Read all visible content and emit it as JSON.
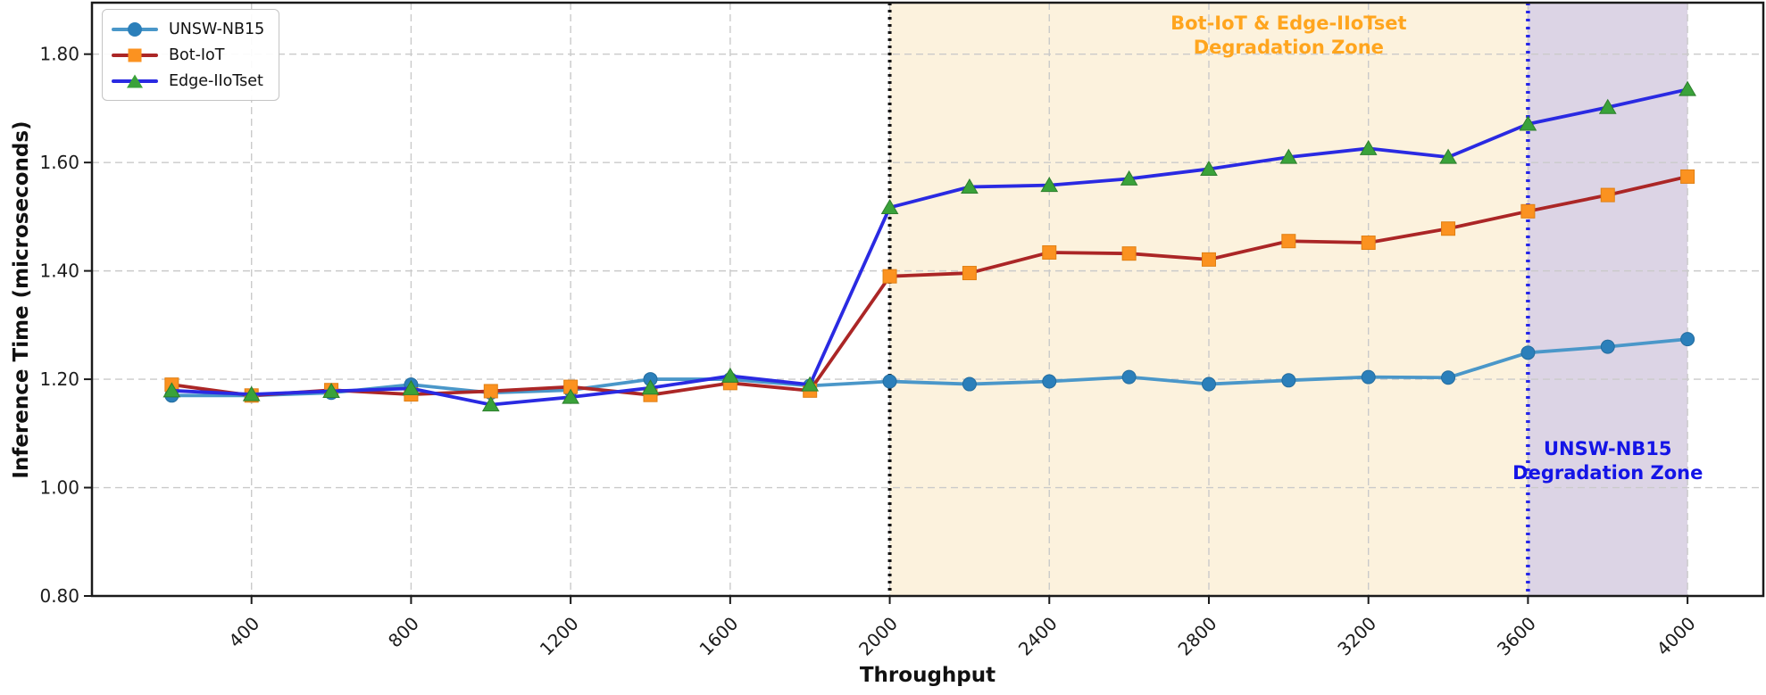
{
  "chart_data": {
    "type": "line",
    "xlabel": "Throughput",
    "ylabel": "Inference Time (microseconds)",
    "x": [
      200,
      400,
      600,
      800,
      1000,
      1200,
      1400,
      1600,
      1800,
      2000,
      2200,
      2400,
      2600,
      2800,
      3000,
      3200,
      3400,
      3600,
      3800,
      4000
    ],
    "xtick_labels": [
      "400",
      "800",
      "1200",
      "1600",
      "2000",
      "2400",
      "2800",
      "3200",
      "3600",
      "4000"
    ],
    "xticks": [
      400,
      800,
      1200,
      1600,
      2000,
      2400,
      2800,
      3200,
      3600,
      4000
    ],
    "ytick_labels": [
      "0.80",
      "1.00",
      "1.20",
      "1.40",
      "1.60",
      "1.80"
    ],
    "yticks": [
      0.8,
      1.0,
      1.2,
      1.4,
      1.6,
      1.8
    ],
    "xlim": [
      0,
      4190
    ],
    "ylim": [
      0.8,
      1.895
    ],
    "grid": true,
    "grid_color": "#cacaca",
    "series": [
      {
        "name": "UNSW-NB15",
        "marker": "circle",
        "line_color": "#4a97c9",
        "marker_color": "#2b7fba",
        "marker_edge": "#246d9f",
        "values": [
          1.17,
          1.17,
          1.175,
          1.19,
          1.175,
          1.18,
          1.2,
          1.2,
          1.188,
          1.196,
          1.191,
          1.196,
          1.204,
          1.191,
          1.198,
          1.204,
          1.203,
          1.249,
          1.26,
          1.274
        ]
      },
      {
        "name": "Bot-IoT",
        "marker": "square",
        "line_color": "#ab2626",
        "marker_color": "#fb9220",
        "marker_edge": "#e07f12",
        "values": [
          1.19,
          1.17,
          1.18,
          1.172,
          1.178,
          1.186,
          1.171,
          1.193,
          1.179,
          1.39,
          1.396,
          1.434,
          1.432,
          1.421,
          1.455,
          1.452,
          1.478,
          1.51,
          1.54,
          1.574
        ]
      },
      {
        "name": "Edge-IIoTset",
        "marker": "triangle",
        "line_color": "#2a2ae2",
        "marker_color": "#3aa23a",
        "marker_edge": "#2d7f2d",
        "values": [
          1.179,
          1.172,
          1.178,
          1.183,
          1.153,
          1.167,
          1.184,
          1.206,
          1.19,
          1.517,
          1.555,
          1.558,
          1.57,
          1.588,
          1.61,
          1.626,
          1.61,
          1.671,
          1.702,
          1.735
        ]
      }
    ],
    "zones": [
      {
        "from": 2000,
        "to": 3600,
        "fill": "#fcf2dd",
        "label_at": 3000,
        "label_lines": [
          "Bot-IoT & Edge-IIoTset",
          "Degradation Zone"
        ],
        "label_color": "#ffa51e"
      },
      {
        "from": 3600,
        "to": 4000,
        "fill": "#dcd4e5",
        "label_at": 3800,
        "label_lines": [
          "UNSW-NB15",
          "Degradation Zone"
        ],
        "label_color": "#1414e6"
      }
    ],
    "vlines": [
      {
        "x": 2000,
        "color": "#141414"
      },
      {
        "x": 3600,
        "color": "#2424e8"
      }
    ],
    "legend_position": "upper-left"
  }
}
